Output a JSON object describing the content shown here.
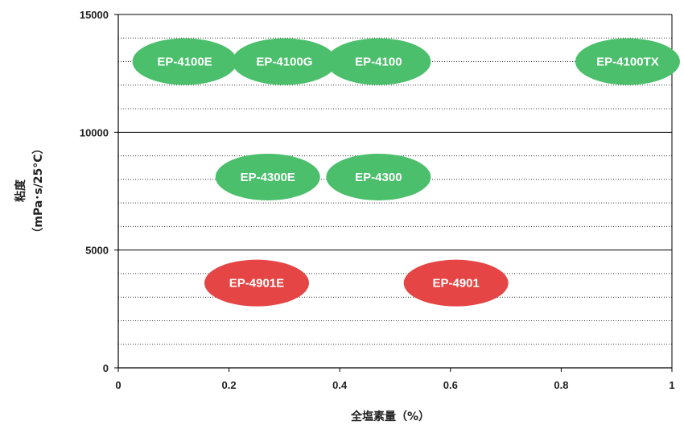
{
  "chart_data": {
    "type": "scatter",
    "xlabel": "全塩素量（%）",
    "ylabel_line1": "粘度",
    "ylabel_line2": "（mPa･s/25°C）",
    "xlim": [
      0,
      1
    ],
    "ylim": [
      0,
      15000
    ],
    "x_ticks": [
      0,
      0.2,
      0.4,
      0.6,
      0.8,
      1
    ],
    "x_tick_labels": [
      "0",
      "0.2",
      "0.4",
      "0.6",
      "0.8",
      "1"
    ],
    "y_major_ticks": [
      0,
      5000,
      10000,
      15000
    ],
    "y_tick_labels": [
      "0",
      "5000",
      "10000",
      "15000"
    ],
    "y_minor_step": 1000,
    "grid": true,
    "colors": {
      "green": "#4bbf6b",
      "red": "#e54545"
    },
    "points": [
      {
        "label": "EP-4100E",
        "x": 0.12,
        "y": 13000,
        "color": "green"
      },
      {
        "label": "EP-4100G",
        "x": 0.3,
        "y": 13000,
        "color": "green"
      },
      {
        "label": "EP-4100",
        "x": 0.47,
        "y": 13000,
        "color": "green"
      },
      {
        "label": "EP-4100TX",
        "x": 0.92,
        "y": 13000,
        "color": "green"
      },
      {
        "label": "EP-4300E",
        "x": 0.27,
        "y": 8100,
        "color": "green"
      },
      {
        "label": "EP-4300",
        "x": 0.47,
        "y": 8100,
        "color": "green"
      },
      {
        "label": "EP-4901E",
        "x": 0.25,
        "y": 3600,
        "color": "red"
      },
      {
        "label": "EP-4901",
        "x": 0.61,
        "y": 3600,
        "color": "red"
      }
    ]
  }
}
